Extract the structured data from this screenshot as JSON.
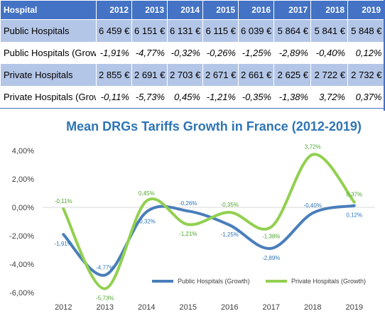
{
  "table": {
    "header": [
      "Hospital",
      "2012",
      "2013",
      "2014",
      "2015",
      "2016",
      "2017",
      "2018",
      "2019"
    ],
    "rows": [
      {
        "label": "Public Hospitals",
        "values": [
          "6 459 €",
          "6 151 €",
          "6 131 €",
          "6 115 €",
          "6 039 €",
          "5 864 €",
          "5 841 €",
          "5 848 €"
        ]
      },
      {
        "label": "Public Hospitals (Growth",
        "values": [
          "-1,91%",
          "-4,77%",
          "-0,32%",
          "-0,26%",
          "-1,25%",
          "-2,89%",
          "-0,40%",
          "0,12%"
        ]
      },
      {
        "label": "Private Hospitals",
        "values": [
          "2 855 €",
          "2 691 €",
          "2 703 €",
          "2 671 €",
          "2 661 €",
          "2 625 €",
          "2 722 €",
          "2 732 €"
        ]
      },
      {
        "label": "Private Hospitals (Growtl",
        "values": [
          "-0,11%",
          "-5,73%",
          "0,45%",
          "-1,21%",
          "-0,35%",
          "-1,38%",
          "3,72%",
          "0,37%"
        ]
      }
    ]
  },
  "chart_data": {
    "type": "line",
    "title": "Mean DRGs Tariffs Growth in France (2012-2019)",
    "x": [
      "2012",
      "2013",
      "2014",
      "2015",
      "2016",
      "2017",
      "2018",
      "2019"
    ],
    "y_ticks": [
      "4,00%",
      "2,00%",
      "0,00%",
      "-2,00%",
      "-4,00%",
      "-6,00%"
    ],
    "ylim": [
      -6,
      4
    ],
    "grid": false,
    "legend_position": "bottom-right",
    "series": [
      {
        "name": "Public Hospitals (Growth)",
        "color": "#4a7ebb",
        "values": [
          -1.91,
          -4.77,
          -0.32,
          -0.26,
          -1.25,
          -2.89,
          -0.4,
          0.12
        ],
        "labels": [
          "-1,91%",
          "-4,77%",
          "-0,32%",
          "-0,26%",
          "-1,25%",
          "-2,89%",
          "-0,40%",
          "0,12%"
        ]
      },
      {
        "name": "Private Hospitals (Growth)",
        "color": "#92d050",
        "values": [
          -0.11,
          -5.73,
          0.45,
          -1.21,
          -0.35,
          -1.38,
          3.72,
          0.37
        ],
        "labels": [
          "-0,11%",
          "-5,73%",
          "0,45%",
          "-1,21%",
          "-0,35%",
          "-1,38%",
          "3,72%",
          "0,37%"
        ]
      }
    ]
  }
}
